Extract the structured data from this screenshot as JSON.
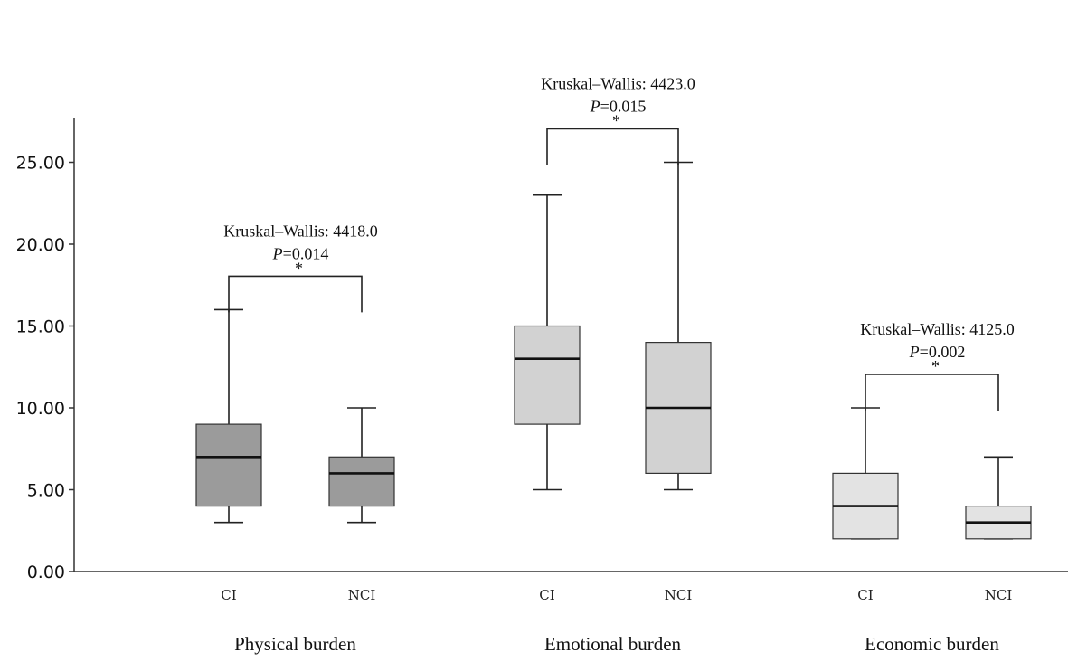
{
  "chart_data": {
    "type": "box",
    "title": "",
    "xlabel": "",
    "ylabel": "",
    "ylim": [
      0,
      27.5
    ],
    "yticks": [
      "0.00",
      "5.00",
      "10.00",
      "15.00",
      "20.00",
      "25.00"
    ],
    "ytick_values": [
      0,
      5,
      10,
      15,
      20,
      25
    ],
    "grid": false,
    "legend": "none",
    "groups": [
      {
        "name": "Physical burden",
        "color": "#9b9b9b",
        "annotation": {
          "stat": "Kruskal–Wallis: 4418.0",
          "p_prefix": "P",
          "p_value": "=0.014",
          "sig": "*"
        },
        "boxes": [
          {
            "category": "CI",
            "min": 3,
            "q1": 4,
            "median": 7,
            "q3": 9,
            "max": 16
          },
          {
            "category": "NCI",
            "min": 3,
            "q1": 4,
            "median": 6,
            "q3": 7,
            "max": 10
          }
        ]
      },
      {
        "name": "Emotional burden",
        "color": "#d2d2d2",
        "annotation": {
          "stat": "Kruskal–Wallis: 4423.0",
          "p_prefix": "P",
          "p_value": "=0.015",
          "sig": "*"
        },
        "boxes": [
          {
            "category": "CI",
            "min": 5,
            "q1": 9,
            "median": 13,
            "q3": 15,
            "max": 23
          },
          {
            "category": "NCI",
            "min": 5,
            "q1": 6,
            "median": 10,
            "q3": 14,
            "max": 25
          }
        ]
      },
      {
        "name": "Economic burden",
        "color": "#e3e3e3",
        "annotation": {
          "stat": "Kruskal–Wallis: 4125.0",
          "p_prefix": "P",
          "p_value": "=0.002",
          "sig": "*"
        },
        "boxes": [
          {
            "category": "CI",
            "min": 2,
            "q1": 2,
            "median": 4,
            "q3": 6,
            "max": 10
          },
          {
            "category": "NCI",
            "min": 2,
            "q1": 2,
            "median": 3,
            "q3": 4,
            "max": 7
          }
        ]
      }
    ]
  }
}
